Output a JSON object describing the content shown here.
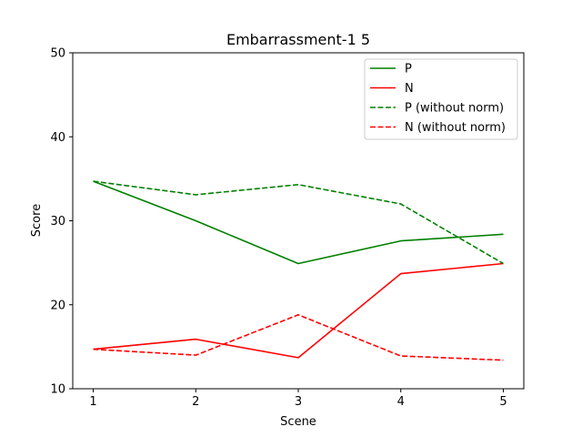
{
  "chart_data": {
    "type": "line",
    "title": "Embarrassment-1 5",
    "xlabel": "Scene",
    "ylabel": "Score",
    "x": [
      1,
      2,
      3,
      4,
      5
    ],
    "x_ticks": [
      "1",
      "2",
      "3",
      "4",
      "5"
    ],
    "y_ticks": [
      "10",
      "20",
      "30",
      "40",
      "50"
    ],
    "xlim": [
      0.8,
      5.2
    ],
    "ylim": [
      10,
      50
    ],
    "grid": false,
    "legend_position": "top-right",
    "series": [
      {
        "name": "P",
        "values": [
          34.7,
          30.0,
          24.9,
          27.6,
          28.4
        ],
        "color": "#008000",
        "dash": "solid"
      },
      {
        "name": "N",
        "values": [
          14.7,
          15.9,
          13.7,
          23.7,
          24.9
        ],
        "color": "#ff0000",
        "dash": "solid"
      },
      {
        "name": "P (without norm)",
        "values": [
          34.7,
          33.1,
          34.3,
          32.0,
          24.9
        ],
        "color": "#008000",
        "dash": "dashed"
      },
      {
        "name": "N (without norm)",
        "values": [
          14.7,
          14.0,
          18.8,
          13.9,
          13.4
        ],
        "color": "#ff0000",
        "dash": "dashed"
      }
    ]
  }
}
